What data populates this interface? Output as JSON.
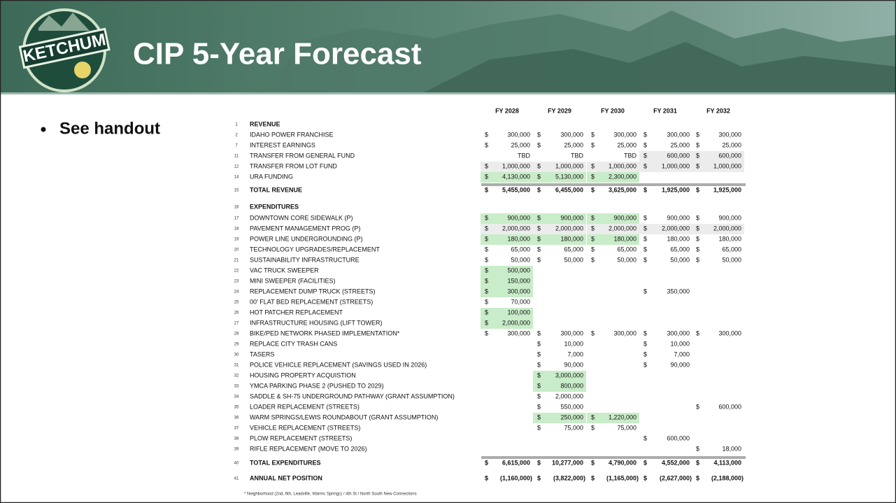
{
  "header": {
    "logo_text": "KETCHUM",
    "title": "CIP 5-Year Forecast"
  },
  "bullets": [
    "See handout"
  ],
  "table": {
    "columns": [
      "FY 2028",
      "FY 2029",
      "FY 2030",
      "FY 2031",
      "FY 2032"
    ],
    "rows": [
      {
        "number": "1",
        "label": "REVENUE",
        "style": "section",
        "cells": []
      },
      {
        "number": "2",
        "label": "IDAHO POWER FRANCHISE",
        "cells": [
          {
            "sign": "$",
            "amount": "300,000"
          },
          {
            "sign": "$",
            "amount": "300,000"
          },
          {
            "sign": "$",
            "amount": "300,000"
          },
          {
            "sign": "$",
            "amount": "300,000"
          },
          {
            "sign": "$",
            "amount": "300,000"
          }
        ]
      },
      {
        "number": "7",
        "label": "INTEREST EARNINGS",
        "cells": [
          {
            "sign": "$",
            "amount": "25,000"
          },
          {
            "sign": "$",
            "amount": "25,000"
          },
          {
            "sign": "$",
            "amount": "25,000"
          },
          {
            "sign": "$",
            "amount": "25,000"
          },
          {
            "sign": "$",
            "amount": "25,000"
          }
        ]
      },
      {
        "number": "11",
        "label": "TRANSFER FROM GENERAL FUND",
        "cells": [
          {
            "amount": "TBD"
          },
          {
            "amount": "TBD"
          },
          {
            "amount": "TBD"
          },
          {
            "sign": "$",
            "amount": "600,000",
            "fill": "#ececec"
          },
          {
            "sign": "$",
            "amount": "600,000",
            "fill": "#ececec"
          }
        ]
      },
      {
        "number": "12",
        "label": "TRANSFER FROM LOT FUND",
        "cells": [
          {
            "sign": "$",
            "amount": "1,000,000",
            "fill": "#ececec"
          },
          {
            "sign": "$",
            "amount": "1,000,000",
            "fill": "#ececec"
          },
          {
            "sign": "$",
            "amount": "1,000,000",
            "fill": "#ececec"
          },
          {
            "sign": "$",
            "amount": "1,000,000",
            "fill": "#ececec"
          },
          {
            "sign": "$",
            "amount": "1,000,000",
            "fill": "#ececec"
          }
        ]
      },
      {
        "number": "14",
        "label": "URA FUNDING",
        "cells": [
          {
            "sign": "$",
            "amount": "4,130,000",
            "fill": "#c9ecc9"
          },
          {
            "sign": "$",
            "amount": "5,130,000",
            "fill": "#c9ecc9"
          },
          {
            "sign": "$",
            "amount": "2,300,000",
            "fill": "#c9ecc9"
          },
          null,
          null
        ]
      },
      {
        "number": "15",
        "label": "TOTAL REVENUE",
        "style": "total",
        "cells": [
          {
            "sign": "$",
            "amount": "5,455,000"
          },
          {
            "sign": "$",
            "amount": "6,455,000"
          },
          {
            "sign": "$",
            "amount": "3,625,000"
          },
          {
            "sign": "$",
            "amount": "1,925,000"
          },
          {
            "sign": "$",
            "amount": "1,925,000"
          }
        ]
      },
      {
        "number": "16",
        "label": "EXPENDITURES",
        "style": "section",
        "cells": []
      },
      {
        "number": "17",
        "label": "DOWNTOWN CORE SIDEWALK (P)",
        "cells": [
          {
            "sign": "$",
            "amount": "900,000",
            "fill": "#c9ecc9"
          },
          {
            "sign": "$",
            "amount": "900,000",
            "fill": "#c9ecc9"
          },
          {
            "sign": "$",
            "amount": "900,000",
            "fill": "#c9ecc9"
          },
          {
            "sign": "$",
            "amount": "900,000"
          },
          {
            "sign": "$",
            "amount": "900,000"
          }
        ]
      },
      {
        "number": "18",
        "label": "PAVEMENT MANAGEMENT PROG (P)",
        "cells": [
          {
            "sign": "$",
            "amount": "2,000,000",
            "fill": "#ececec"
          },
          {
            "sign": "$",
            "amount": "2,000,000",
            "fill": "#ececec"
          },
          {
            "sign": "$",
            "amount": "2,000,000",
            "fill": "#ececec"
          },
          {
            "sign": "$",
            "amount": "2,000,000",
            "fill": "#ececec"
          },
          {
            "sign": "$",
            "amount": "2,000,000",
            "fill": "#ececec"
          }
        ]
      },
      {
        "number": "19",
        "label": "POWER LINE UNDERGROUNDING (P)",
        "cells": [
          {
            "sign": "$",
            "amount": "180,000",
            "fill": "#c9ecc9"
          },
          {
            "sign": "$",
            "amount": "180,000",
            "fill": "#c9ecc9"
          },
          {
            "sign": "$",
            "amount": "180,000",
            "fill": "#c9ecc9"
          },
          {
            "sign": "$",
            "amount": "180,000"
          },
          {
            "sign": "$",
            "amount": "180,000"
          }
        ]
      },
      {
        "number": "20",
        "label": "TECHNOLOGY UPGRADES/REPLACEMENT",
        "cells": [
          {
            "sign": "$",
            "amount": "65,000"
          },
          {
            "sign": "$",
            "amount": "65,000"
          },
          {
            "sign": "$",
            "amount": "65,000"
          },
          {
            "sign": "$",
            "amount": "65,000"
          },
          {
            "sign": "$",
            "amount": "65,000"
          }
        ]
      },
      {
        "number": "21",
        "label": "SUSTAINABILITY INFRASTRUCTURE",
        "cells": [
          {
            "sign": "$",
            "amount": "50,000"
          },
          {
            "sign": "$",
            "amount": "50,000"
          },
          {
            "sign": "$",
            "amount": "50,000"
          },
          {
            "sign": "$",
            "amount": "50,000"
          },
          {
            "sign": "$",
            "amount": "50,000"
          }
        ]
      },
      {
        "number": "22",
        "label": "VAC TRUCK SWEEPER",
        "cells": [
          {
            "sign": "$",
            "amount": "500,000",
            "fill": "#c9ecc9"
          },
          null,
          null,
          null,
          null
        ]
      },
      {
        "number": "23",
        "label": "MINI SWEEPER (FACILITIES)",
        "cells": [
          {
            "sign": "$",
            "amount": "150,000",
            "fill": "#c9ecc9"
          },
          null,
          null,
          null,
          null
        ]
      },
      {
        "number": "24",
        "label": "REPLACEMENT DUMP TRUCK (STREETS)",
        "cells": [
          {
            "sign": "$",
            "amount": "300,000",
            "fill": "#c9ecc9"
          },
          null,
          null,
          {
            "sign": "$",
            "amount": "350,000"
          },
          null
        ]
      },
      {
        "number": "25",
        "label": "00' FLAT BED REPLACEMENT (STREETS)",
        "cells": [
          {
            "sign": "$",
            "amount": "70,000"
          },
          null,
          null,
          null,
          null
        ]
      },
      {
        "number": "26",
        "label": "HOT PATCHER REPLACEMENT",
        "cells": [
          {
            "sign": "$",
            "amount": "100,000",
            "fill": "#c9ecc9"
          },
          null,
          null,
          null,
          null
        ]
      },
      {
        "number": "27",
        "label": "INFRASTRUCTURE HOUSING (LIFT TOWER)",
        "cells": [
          {
            "sign": "$",
            "amount": "2,000,000",
            "fill": "#c9ecc9"
          },
          null,
          null,
          null,
          null
        ]
      },
      {
        "number": "28",
        "label": "BIKE/PED NETWORK PHASED IMPLEMENTATION*",
        "cells": [
          {
            "sign": "$",
            "amount": "300,000"
          },
          {
            "sign": "$",
            "amount": "300,000"
          },
          {
            "sign": "$",
            "amount": "300,000"
          },
          {
            "sign": "$",
            "amount": "300,000"
          },
          {
            "sign": "$",
            "amount": "300,000"
          }
        ]
      },
      {
        "number": "29",
        "label": "REPLACE CITY TRASH CANS",
        "cells": [
          null,
          {
            "sign": "$",
            "amount": "10,000"
          },
          null,
          {
            "sign": "$",
            "amount": "10,000"
          },
          null
        ]
      },
      {
        "number": "30",
        "label": "TASERS",
        "cells": [
          null,
          {
            "sign": "$",
            "amount": "7,000"
          },
          null,
          {
            "sign": "$",
            "amount": "7,000"
          },
          null
        ]
      },
      {
        "number": "31",
        "label": "POLICE VEHICLE REPLACEMENT (SAVINGS USED IN 2026)",
        "cells": [
          null,
          {
            "sign": "$",
            "amount": "90,000"
          },
          null,
          {
            "sign": "$",
            "amount": "90,000"
          },
          null
        ]
      },
      {
        "number": "32",
        "label": "HOUSING PROPERTY ACQUISTION",
        "cells": [
          null,
          {
            "sign": "$",
            "amount": "3,000,000",
            "fill": "#c9ecc9"
          },
          null,
          null,
          null
        ]
      },
      {
        "number": "33",
        "label": "YMCA PARKING PHASE 2 (PUSHED TO 2029)",
        "cells": [
          null,
          {
            "sign": "$",
            "amount": "800,000",
            "fill": "#c9ecc9"
          },
          null,
          null,
          null
        ]
      },
      {
        "number": "34",
        "label": "SADDLE & SH-75 UNDERGROUND PATHWAY (GRANT ASSUMPTION)",
        "cells": [
          null,
          {
            "sign": "$",
            "amount": "2,000,000"
          },
          null,
          null,
          null
        ]
      },
      {
        "number": "35",
        "label": "LOADER REPLACEMENT (STREETS)",
        "cells": [
          null,
          {
            "sign": "$",
            "amount": "550,000"
          },
          null,
          null,
          {
            "sign": "$",
            "amount": "600,000"
          }
        ]
      },
      {
        "number": "36",
        "label": "WARM SPRINGS/LEWIS ROUNDABOUT (GRANT ASSUMPTION)",
        "cells": [
          null,
          {
            "sign": "$",
            "amount": "250,000",
            "fill": "#c9ecc9"
          },
          {
            "sign": "$",
            "amount": "1,220,000",
            "fill": "#c9ecc9"
          },
          null,
          null
        ]
      },
      {
        "number": "37",
        "label": "VEHICLE REPLACEMENT (STREETS)",
        "cells": [
          null,
          {
            "sign": "$",
            "amount": "75,000"
          },
          {
            "sign": "$",
            "amount": "75,000"
          },
          null,
          null
        ]
      },
      {
        "number": "38",
        "label": "PLOW REPLACEMENT (STREETS)",
        "cells": [
          null,
          null,
          null,
          {
            "sign": "$",
            "amount": "600,000"
          },
          null
        ]
      },
      {
        "number": "39",
        "label": "RIFLE REPLACEMENT (MOVE TO 2026)",
        "cells": [
          null,
          null,
          null,
          null,
          {
            "sign": "$",
            "amount": "18,000"
          }
        ]
      },
      {
        "number": "40",
        "label": "TOTAL EXPENDITURES",
        "style": "total",
        "cells": [
          {
            "sign": "$",
            "amount": "6,615,000"
          },
          {
            "sign": "$",
            "amount": "10,277,000"
          },
          {
            "sign": "$",
            "amount": "4,790,000"
          },
          {
            "sign": "$",
            "amount": "4,552,000"
          },
          {
            "sign": "$",
            "amount": "4,113,000"
          }
        ]
      },
      {
        "number": "41",
        "label": "ANNUAL NET POSITION",
        "style": "section",
        "cells": [
          {
            "sign": "$",
            "amount": "(1,160,000)"
          },
          {
            "sign": "$",
            "amount": "(3,822,000)"
          },
          {
            "sign": "$",
            "amount": "(1,165,000)"
          },
          {
            "sign": "$",
            "amount": "(2,627,000)"
          },
          {
            "sign": "$",
            "amount": "(2,188,000)"
          }
        ]
      }
    ],
    "footnote": "* Neighborhood (2nd, 6th, Leadville, Warms Springs) / 4th St / North South New Connections"
  }
}
